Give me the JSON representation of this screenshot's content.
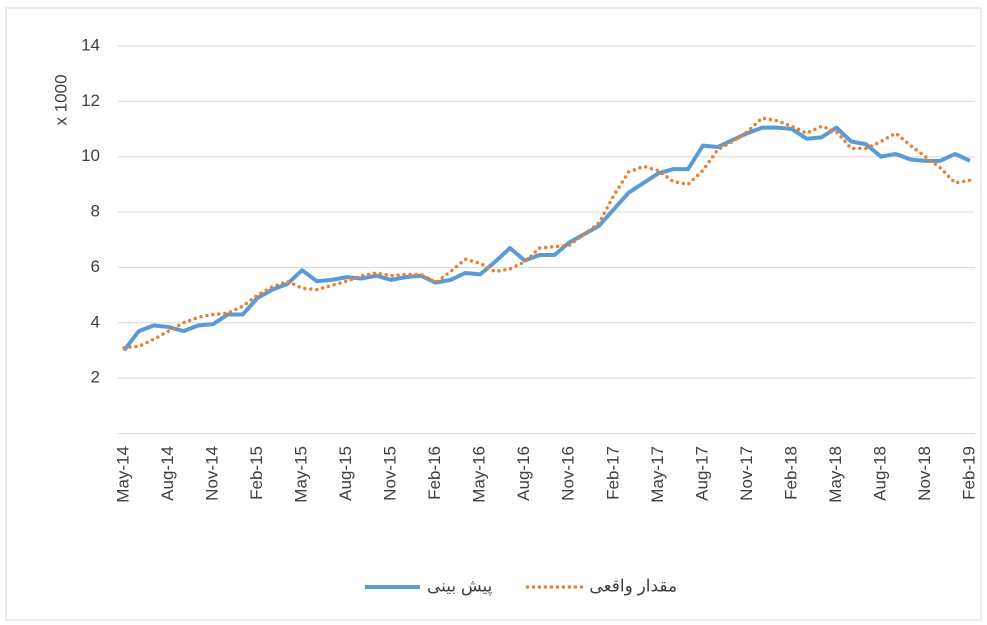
{
  "chart_data": {
    "type": "line",
    "y_label": "x 1000",
    "categories": [
      "May-14",
      null,
      null,
      "Aug-14",
      null,
      null,
      "Nov-14",
      null,
      null,
      "Feb-15",
      null,
      null,
      "May-15",
      null,
      null,
      "Aug-15",
      null,
      null,
      "Nov-15",
      null,
      null,
      "Feb-16",
      null,
      null,
      "May-16",
      null,
      null,
      "Aug-16",
      null,
      null,
      "Nov-16",
      null,
      null,
      "Feb-17",
      null,
      null,
      "May-17",
      null,
      null,
      "Aug-17",
      null,
      null,
      "Nov-17",
      null,
      null,
      "Feb-18",
      null,
      null,
      "May-18",
      null,
      null,
      "Aug-18",
      null,
      null,
      "Nov-18",
      null,
      null,
      "Feb-19"
    ],
    "series": [
      {
        "name": "پیش بینی",
        "color": "#5b9bd5",
        "style": "solid",
        "values": [
          3.0,
          3.7,
          3.9,
          3.85,
          3.7,
          3.9,
          3.95,
          4.3,
          4.3,
          4.9,
          5.2,
          5.4,
          5.9,
          5.5,
          5.55,
          5.65,
          5.6,
          5.7,
          5.55,
          5.65,
          5.7,
          5.45,
          5.55,
          5.8,
          5.75,
          6.2,
          6.7,
          6.25,
          6.45,
          6.45,
          6.9,
          7.2,
          7.5,
          8.1,
          8.7,
          9.05,
          9.4,
          9.55,
          9.55,
          10.4,
          10.35,
          10.6,
          10.85,
          11.05,
          11.05,
          11.0,
          10.65,
          10.7,
          11.05,
          10.55,
          10.45,
          10.0,
          10.1,
          9.9,
          9.85,
          9.85,
          10.1,
          9.85
        ]
      },
      {
        "name": "مقدار واقعی",
        "color": "#ed7d31",
        "style": "dotted",
        "values": [
          3.1,
          3.15,
          3.4,
          3.7,
          4.0,
          4.2,
          4.3,
          4.35,
          4.6,
          5.0,
          5.3,
          5.5,
          5.25,
          5.2,
          5.35,
          5.5,
          5.7,
          5.8,
          5.7,
          5.75,
          5.75,
          5.45,
          5.85,
          6.3,
          6.15,
          5.85,
          5.95,
          6.2,
          6.7,
          6.75,
          6.8,
          7.2,
          7.6,
          8.6,
          9.45,
          9.65,
          9.5,
          9.1,
          9.0,
          9.5,
          10.25,
          10.55,
          10.9,
          11.4,
          11.3,
          11.1,
          10.85,
          11.1,
          10.9,
          10.3,
          10.3,
          10.55,
          10.85,
          10.4,
          10.0,
          9.6,
          9.05,
          9.15
        ]
      }
    ],
    "ylim": [
      0,
      14
    ],
    "yticks": [
      2,
      4,
      6,
      8,
      10,
      12,
      14
    ],
    "grid": true,
    "legend": "bottom"
  }
}
